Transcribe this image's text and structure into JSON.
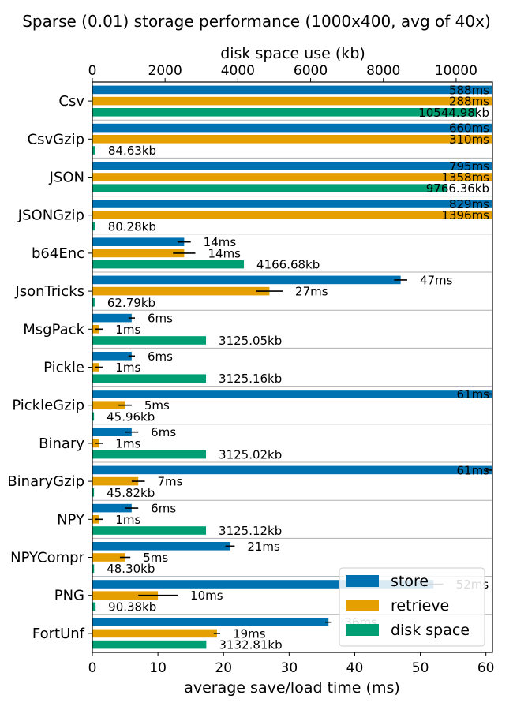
{
  "chart_data": {
    "type": "bar",
    "orientation": "horizontal",
    "title": "Sparse (0.01) storage performance (1000x400, avg of 40x)",
    "xlabel": "average save/load time (ms)",
    "x2label": "disk space use (kb)",
    "xlim": [
      0,
      61
    ],
    "xticks": [
      0,
      10,
      20,
      30,
      40,
      50,
      60
    ],
    "xtick_labels": [
      "0",
      "10",
      "20",
      "30",
      "40",
      "50",
      "60"
    ],
    "x2lim": [
      0,
      11000
    ],
    "x2ticks": [
      0,
      2000,
      4000,
      6000,
      8000,
      10000
    ],
    "x2tick_labels": [
      "0",
      "2000",
      "4000",
      "6000",
      "8000",
      "10000"
    ],
    "grid": "horizontal",
    "legend_position": "lower-right",
    "categories": [
      "Csv",
      "CsvGzip",
      "JSON",
      "JSONGzip",
      "b64Enc",
      "JsonTricks",
      "MsgPack",
      "Pickle",
      "PickleGzip",
      "Binary",
      "BinaryGzip",
      "NPY",
      "NPYCompr",
      "PNG",
      "FortUnf"
    ],
    "series": [
      {
        "name": "store",
        "axis": "bottom",
        "color": "#0072b2",
        "values": [
          588,
          660,
          795,
          829,
          14,
          47,
          6,
          6,
          61,
          6,
          61,
          6,
          21,
          52,
          36
        ],
        "errors": [
          0,
          0,
          0,
          0,
          1,
          1,
          0.5,
          0.5,
          1,
          1,
          1,
          1,
          0.7,
          1.5,
          0.5
        ],
        "labels": [
          "588ms",
          "660ms",
          "795ms",
          "829ms",
          "14ms",
          "47ms",
          "6ms",
          "6ms",
          "61ms",
          "6ms",
          "61ms",
          "6ms",
          "21ms",
          "52ms",
          "36ms"
        ]
      },
      {
        "name": "retrieve",
        "axis": "bottom",
        "color": "#e69f00",
        "values": [
          288,
          310,
          1358,
          1396,
          14,
          27,
          1,
          1,
          5,
          1,
          7,
          1,
          5,
          10,
          19
        ],
        "errors": [
          0,
          0,
          0,
          0,
          1.7,
          2,
          0.6,
          0.6,
          1,
          0.6,
          1,
          0.6,
          0.8,
          3,
          0.5
        ],
        "labels": [
          "288ms",
          "310ms",
          "1358ms",
          "1396ms",
          "14ms",
          "27ms",
          "1ms",
          "1ms",
          "5ms",
          "1ms",
          "7ms",
          "1ms",
          "5ms",
          "10ms",
          "19ms"
        ]
      },
      {
        "name": "disk space",
        "axis": "top",
        "color": "#009e73",
        "values": [
          10544.98,
          84.63,
          9766.36,
          80.28,
          4166.68,
          62.79,
          3125.05,
          3125.16,
          45.96,
          3125.02,
          45.82,
          3125.12,
          48.3,
          90.38,
          3132.81
        ],
        "errors": [],
        "labels": [
          "10544.98kb",
          "84.63kb",
          "9766.36kb",
          "80.28kb",
          "4166.68kb",
          "62.79kb",
          "3125.05kb",
          "3125.16kb",
          "45.96kb",
          "3125.02kb",
          "45.82kb",
          "3125.12kb",
          "48.30kb",
          "90.38kb",
          "3132.81kb"
        ]
      }
    ]
  }
}
